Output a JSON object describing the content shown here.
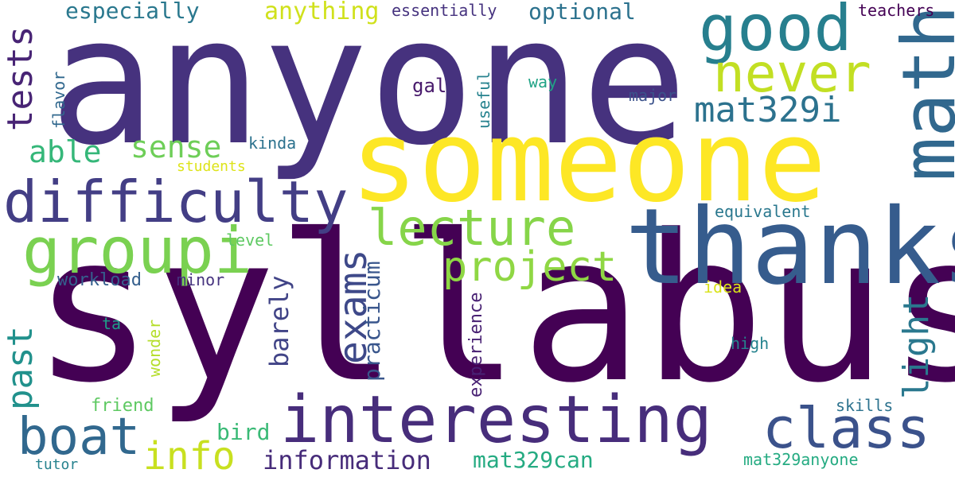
{
  "words": [
    {
      "text": "anyone",
      "color": "#46327e"
    },
    {
      "text": "syllabus",
      "color": "#440154"
    },
    {
      "text": "someone",
      "color": "#fde725"
    },
    {
      "text": "thanks",
      "color": "#365c8d"
    },
    {
      "text": "interesting",
      "color": "#472d7b"
    },
    {
      "text": "difficulty",
      "color": "#433e85"
    },
    {
      "text": "math",
      "color": "#31688e"
    },
    {
      "text": "good",
      "color": "#277f8e"
    },
    {
      "text": "groupi",
      "color": "#7ad151"
    },
    {
      "text": "never",
      "color": "#c2df23"
    },
    {
      "text": "lecture",
      "color": "#86d549"
    },
    {
      "text": "class",
      "color": "#3b528b"
    },
    {
      "text": "boat",
      "color": "#31688e"
    },
    {
      "text": "project",
      "color": "#8fd744"
    },
    {
      "text": "mat329i",
      "color": "#2c728e"
    },
    {
      "text": "exams",
      "color": "#3e4989"
    },
    {
      "text": "info",
      "color": "#c8e020"
    },
    {
      "text": "past",
      "color": "#21918c"
    },
    {
      "text": "tests",
      "color": "#482475"
    },
    {
      "text": "light",
      "color": "#2a788e"
    },
    {
      "text": "sense",
      "color": "#6ece58"
    },
    {
      "text": "able",
      "color": "#35b779"
    },
    {
      "text": "information",
      "color": "#472c7a"
    },
    {
      "text": "mat329can",
      "color": "#25ab82"
    },
    {
      "text": "anything",
      "color": "#d0e11c"
    },
    {
      "text": "especially",
      "color": "#2a788e"
    },
    {
      "text": "optional",
      "color": "#2c728e"
    },
    {
      "text": "barely",
      "color": "#414487"
    },
    {
      "text": "practicum",
      "color": "#39568c"
    },
    {
      "text": "experience",
      "color": "#482173"
    },
    {
      "text": "bird",
      "color": "#3aba76"
    },
    {
      "text": "essentially",
      "color": "#46337f"
    },
    {
      "text": "teachers",
      "color": "#440154"
    },
    {
      "text": "flavor",
      "color": "#31688e"
    },
    {
      "text": "gal",
      "color": "#481a6c"
    },
    {
      "text": "useful",
      "color": "#26828e"
    },
    {
      "text": "way",
      "color": "#20a386"
    },
    {
      "text": "major",
      "color": "#3b528b"
    },
    {
      "text": "kinda",
      "color": "#2c728e"
    },
    {
      "text": "students",
      "color": "#dde318"
    },
    {
      "text": "equivalent",
      "color": "#2a788e"
    },
    {
      "text": "level",
      "color": "#5ec962"
    },
    {
      "text": "workload",
      "color": "#355f8d"
    },
    {
      "text": "minor",
      "color": "#46337f"
    },
    {
      "text": "idea",
      "color": "#d8e219"
    },
    {
      "text": "ta",
      "color": "#1f9e89"
    },
    {
      "text": "wonder",
      "color": "#b5de2b"
    },
    {
      "text": "high",
      "color": "#25838e"
    },
    {
      "text": "friend",
      "color": "#5ec962"
    },
    {
      "text": "skills",
      "color": "#2c728e"
    },
    {
      "text": "tutor",
      "color": "#26828e"
    },
    {
      "text": "mat329anyone",
      "color": "#25ab82"
    }
  ]
}
